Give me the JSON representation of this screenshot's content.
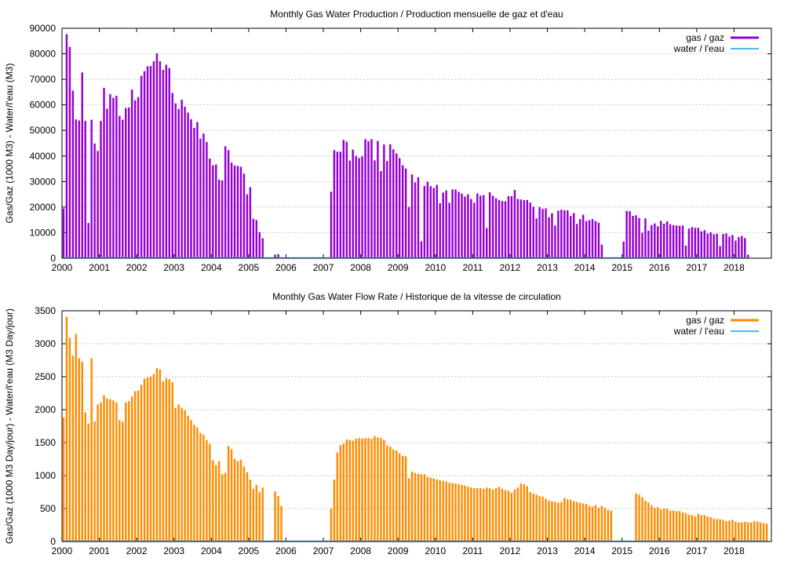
{
  "chart_data": [
    {
      "type": "bar",
      "title": "Monthly Gas  Water Production / Production mensuelle de gaz et d'eau",
      "xlabel": "",
      "ylabel": "Gas/Gaz (1000 M3) - Water/l'eau (M3)",
      "ylim": [
        0,
        90000
      ],
      "yticks": [
        "0",
        "10000",
        "20000",
        "30000",
        "40000",
        "50000",
        "60000",
        "70000",
        "80000",
        "90000"
      ],
      "xlim": [
        2000.0,
        2019.0
      ],
      "xticks": [
        "2000",
        "2001",
        "2002",
        "2003",
        "2004",
        "2005",
        "2006",
        "2007",
        "2008",
        "2009",
        "2010",
        "2011",
        "2012",
        "2013",
        "2014",
        "2015",
        "2016",
        "2017",
        "2018"
      ],
      "grid": true,
      "legend_position": "top-right",
      "x_start": "2000-01",
      "series": [
        {
          "name": "gas / gaz",
          "color": "#9400d3",
          "values": [
            19500,
            87700,
            82700,
            65600,
            54300,
            53900,
            72700,
            53700,
            13800,
            54200,
            44900,
            42000,
            53700,
            66700,
            58500,
            64200,
            62800,
            63600,
            55700,
            54200,
            58800,
            59000,
            66000,
            61800,
            63100,
            71400,
            73200,
            75100,
            75200,
            77100,
            80200,
            77100,
            73700,
            75700,
            74400,
            64700,
            60600,
            58400,
            62000,
            59300,
            57000,
            54400,
            51000,
            53300,
            46800,
            48800,
            45500,
            39000,
            36400,
            36700,
            30800,
            30400,
            43800,
            42300,
            37400,
            36300,
            36100,
            35800,
            33100,
            25000,
            27800,
            15400,
            14900,
            10200,
            7800,
            0,
            0,
            0,
            1400,
            1600,
            0,
            0,
            0,
            0,
            0,
            0,
            0,
            0,
            0,
            0,
            0,
            0,
            0,
            0,
            0,
            0,
            26000,
            42300,
            41700,
            41700,
            46300,
            45600,
            38200,
            42500,
            40000,
            39200,
            39900,
            46600,
            45800,
            46600,
            38300,
            45900,
            34100,
            44500,
            38000,
            44600,
            42600,
            41000,
            39200,
            36400,
            35100,
            20100,
            32800,
            29700,
            31700,
            6600,
            28300,
            29900,
            28200,
            27500,
            28700,
            21500,
            25700,
            26500,
            21700,
            26900,
            26900,
            26000,
            25300,
            24100,
            25000,
            23200,
            21700,
            25400,
            24500,
            24700,
            11800,
            25800,
            24400,
            23500,
            22800,
            22400,
            22300,
            24300,
            24300,
            26700,
            23200,
            23000,
            22700,
            22800,
            21800,
            20200,
            15600,
            20000,
            19300,
            19500,
            16000,
            17600,
            12800,
            18600,
            19000,
            18800,
            18700,
            16500,
            17700,
            13400,
            15300,
            17000,
            14600,
            14900,
            15300,
            14500,
            13900,
            5300,
            0,
            0,
            0,
            0,
            0,
            0,
            6500,
            18500,
            18400,
            16600,
            16800,
            15700,
            10000,
            15600,
            10800,
            13000,
            13600,
            12500,
            14600,
            13500,
            14400,
            13300,
            12900,
            12800,
            12700,
            12800,
            4900,
            11600,
            12200,
            11900,
            11900,
            10500,
            11000,
            9700,
            10100,
            9400,
            9600,
            4800,
            9500,
            9700,
            8500,
            9100,
            6900,
            8300,
            8700,
            7900,
            1400
          ]
        },
        {
          "name": "water / l'eau",
          "color": "#56b4e9",
          "values": []
        }
      ]
    },
    {
      "type": "bar",
      "title": "Monthly Gas  Water Flow Rate / Historique de la vitesse de circulation",
      "xlabel": "",
      "ylabel": "Gas/Gaz (1000 M3 Day/jour) - Water/l'eau (M3 Day/jour)",
      "ylim": [
        0,
        3500
      ],
      "yticks": [
        "0",
        "500",
        "1000",
        "1500",
        "2000",
        "2500",
        "3000",
        "3500"
      ],
      "xlim": [
        2000.0,
        2019.0
      ],
      "xticks": [
        "2000",
        "2001",
        "2002",
        "2003",
        "2004",
        "2005",
        "2006",
        "2007",
        "2008",
        "2009",
        "2010",
        "2011",
        "2012",
        "2013",
        "2014",
        "2015",
        "2016",
        "2017",
        "2018"
      ],
      "grid": true,
      "legend_position": "top-right",
      "x_start": "2000-01",
      "series": [
        {
          "name": "gas / gaz",
          "color": "#ff8c00",
          "values": [
            1880,
            3410,
            3090,
            2820,
            3150,
            2780,
            2730,
            1960,
            1790,
            2780,
            1820,
            2080,
            2110,
            2220,
            2170,
            2160,
            2140,
            2110,
            1840,
            1820,
            2110,
            2130,
            2200,
            2280,
            2290,
            2380,
            2470,
            2490,
            2500,
            2540,
            2630,
            2610,
            2430,
            2480,
            2460,
            2420,
            2030,
            2080,
            2030,
            1990,
            1910,
            1840,
            1770,
            1730,
            1650,
            1620,
            1540,
            1480,
            1230,
            1160,
            1220,
            1020,
            1040,
            1450,
            1400,
            1250,
            1220,
            1240,
            1140,
            1050,
            940,
            800,
            860,
            750,
            820,
            0,
            0,
            0,
            760,
            690,
            540,
            0,
            0,
            0,
            0,
            0,
            0,
            0,
            0,
            0,
            0,
            0,
            0,
            0,
            0,
            0,
            500,
            940,
            1350,
            1460,
            1490,
            1550,
            1540,
            1530,
            1560,
            1570,
            1560,
            1570,
            1570,
            1560,
            1600,
            1580,
            1570,
            1540,
            1460,
            1440,
            1400,
            1380,
            1340,
            1300,
            1290,
            960,
            1060,
            1040,
            1030,
            1020,
            1020,
            980,
            970,
            960,
            940,
            930,
            920,
            910,
            890,
            890,
            880,
            870,
            860,
            850,
            830,
            820,
            810,
            810,
            810,
            800,
            820,
            810,
            790,
            810,
            830,
            800,
            780,
            770,
            740,
            790,
            820,
            880,
            870,
            840,
            750,
            730,
            710,
            690,
            680,
            650,
            620,
            610,
            600,
            590,
            600,
            660,
            640,
            630,
            610,
            600,
            590,
            580,
            570,
            540,
            530,
            550,
            510,
            540,
            510,
            480,
            470,
            0,
            0,
            0,
            0,
            0,
            0,
            0,
            730,
            710,
            670,
            620,
            590,
            550,
            510,
            520,
            490,
            500,
            500,
            470,
            470,
            460,
            460,
            440,
            430,
            410,
            400,
            380,
            420,
            400,
            400,
            380,
            370,
            350,
            340,
            340,
            330,
            310,
            320,
            330,
            300,
            290,
            290,
            300,
            290,
            290,
            310,
            300,
            290,
            280,
            270
          ]
        },
        {
          "name": "water / l'eau",
          "color": "#56b4e9",
          "values": []
        }
      ]
    }
  ]
}
